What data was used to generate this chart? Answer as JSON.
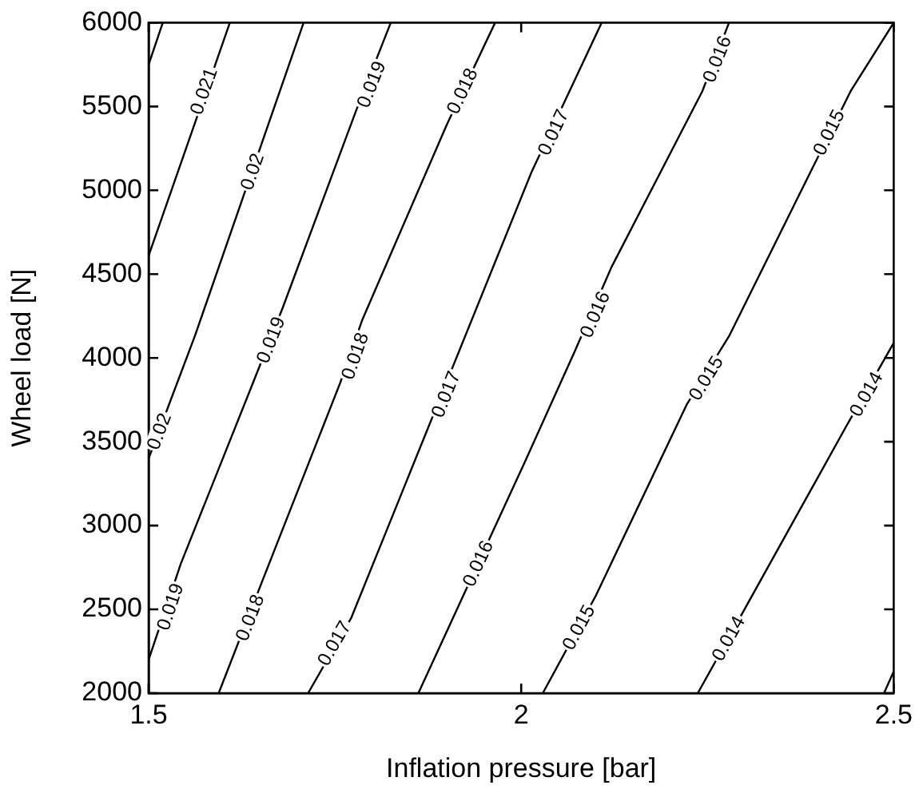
{
  "chart_data": {
    "type": "line",
    "xlabel": "Inflation pressure [bar]",
    "ylabel": "Wheel load [N]",
    "xlim": [
      1.5,
      2.5
    ],
    "xticks": [
      1.5,
      2,
      2.5
    ],
    "ylim": [
      2000,
      6000
    ],
    "yticks": [
      2000,
      2500,
      3000,
      3500,
      4000,
      4500,
      5000,
      5500,
      6000
    ],
    "grid": false,
    "legend": false,
    "marker": "none",
    "line_style": "solid",
    "series": [
      {
        "color": "#000000",
        "x": [
          1.5,
          1.519
        ],
        "values": [
          5750,
          6000
        ]
      },
      {
        "color": "#000000",
        "x": [
          1.5,
          1.562,
          1.609
        ],
        "values": [
          4610,
          5400,
          6000
        ]
      },
      {
        "color": "#000000",
        "x": [
          1.5,
          1.562,
          1.708
        ],
        "values": [
          3400,
          4130,
          6000
        ]
      },
      {
        "color": "#000000",
        "x": [
          1.5,
          1.543,
          1.648,
          1.68,
          1.778,
          1.825
        ],
        "values": [
          2200,
          2770,
          3940,
          4300,
          5470,
          6000
        ]
      },
      {
        "color": "#000000",
        "x": [
          1.594,
          1.65,
          1.757,
          1.787,
          1.9,
          1.965
        ],
        "values": [
          2000,
          2640,
          3850,
          4230,
          5390,
          6000
        ]
      },
      {
        "color": "#000000",
        "x": [
          1.714,
          1.772,
          2.014,
          2.108
        ],
        "values": [
          2000,
          2450,
          5110,
          6000
        ]
      },
      {
        "color": "#000000",
        "x": [
          1.862,
          2.007,
          2.072,
          2.121,
          2.243,
          2.279
        ],
        "values": [
          2000,
          3400,
          4040,
          4540,
          5590,
          6000
        ]
      },
      {
        "color": "#000000",
        "x": [
          2.029,
          2.1,
          2.222,
          2.279,
          2.442,
          2.5
        ],
        "values": [
          2000,
          2580,
          3720,
          4130,
          5590,
          6000
        ]
      },
      {
        "color": "#000000",
        "x": [
          2.237,
          2.301,
          2.436,
          2.5
        ],
        "values": [
          2000,
          2510,
          3590,
          4090
        ]
      },
      {
        "color": "#000000",
        "x": [
          2.487,
          2.5
        ],
        "values": [
          2000,
          2130
        ]
      }
    ],
    "annotations": [
      {
        "text": "0.021",
        "x": 1.575,
        "y": 5590
      },
      {
        "text": "0.02",
        "x": 1.64,
        "y": 5110
      },
      {
        "text": "0.02",
        "x": 1.515,
        "y": 3560
      },
      {
        "text": "0.019",
        "x": 1.8,
        "y": 5630
      },
      {
        "text": "0.019",
        "x": 1.665,
        "y": 4105
      },
      {
        "text": "0.019",
        "x": 1.53,
        "y": 2514
      },
      {
        "text": "0.018",
        "x": 1.922,
        "y": 5590
      },
      {
        "text": "0.018",
        "x": 1.778,
        "y": 4010
      },
      {
        "text": "0.018",
        "x": 1.637,
        "y": 2448
      },
      {
        "text": "0.017",
        "x": 2.044,
        "y": 5343
      },
      {
        "text": "0.017",
        "x": 1.9,
        "y": 3781
      },
      {
        "text": "0.017",
        "x": 1.75,
        "y": 2295
      },
      {
        "text": "0.016",
        "x": 2.264,
        "y": 5781
      },
      {
        "text": "0.016",
        "x": 2.1,
        "y": 4257
      },
      {
        "text": "0.016",
        "x": 1.943,
        "y": 2771
      },
      {
        "text": "0.015",
        "x": 2.414,
        "y": 5343
      },
      {
        "text": "0.015",
        "x": 2.249,
        "y": 3876
      },
      {
        "text": "0.015",
        "x": 2.078,
        "y": 2390
      },
      {
        "text": "0.014",
        "x": 2.464,
        "y": 3781
      },
      {
        "text": "0.014",
        "x": 2.279,
        "y": 2324
      }
    ]
  }
}
